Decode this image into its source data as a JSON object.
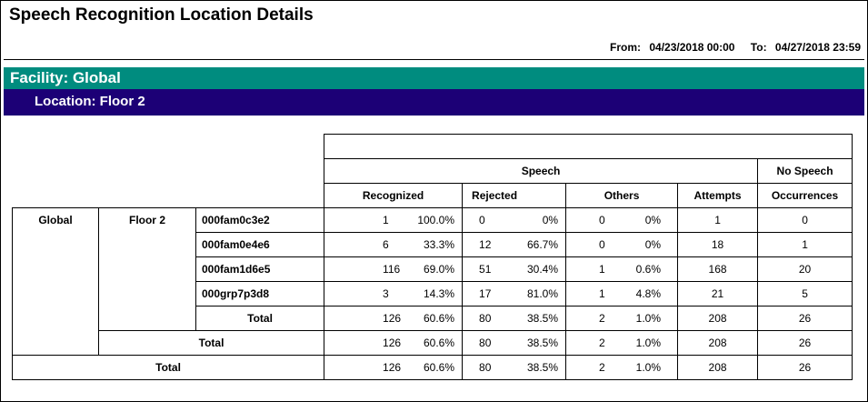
{
  "report": {
    "title": "Speech Recognition Location Details",
    "from_label": "From:",
    "from_value": "04/23/2018 00:00",
    "to_label": "To:",
    "to_value": "04/27/2018 23:59"
  },
  "facility": {
    "label": "Facility: Global"
  },
  "location": {
    "label": "Location: Floor 2"
  },
  "table": {
    "group_headers": {
      "speech": "Speech",
      "no_speech": "No Speech"
    },
    "columns": {
      "recognized": "Recognized",
      "rejected": "Rejected",
      "others": "Others",
      "attempts": "Attempts",
      "occurrences": "Occurrences"
    },
    "facility_name": "Global",
    "location_name": "Floor 2",
    "rows": [
      {
        "name": "000fam0c3e2",
        "rec": "1",
        "rec_pct": "100.0%",
        "rej": "0",
        "rej_pct": "0%",
        "oth": "0",
        "oth_pct": "0%",
        "att": "1",
        "occ": "0"
      },
      {
        "name": "000fam0e4e6",
        "rec": "6",
        "rec_pct": "33.3%",
        "rej": "12",
        "rej_pct": "66.7%",
        "oth": "0",
        "oth_pct": "0%",
        "att": "18",
        "occ": "1"
      },
      {
        "name": "000fam1d6e5",
        "rec": "116",
        "rec_pct": "69.0%",
        "rej": "51",
        "rej_pct": "30.4%",
        "oth": "1",
        "oth_pct": "0.6%",
        "att": "168",
        "occ": "20"
      },
      {
        "name": "000grp7p3d8",
        "rec": "3",
        "rec_pct": "14.3%",
        "rej": "17",
        "rej_pct": "81.0%",
        "oth": "1",
        "oth_pct": "4.8%",
        "att": "21",
        "occ": "5"
      }
    ],
    "totals": [
      {
        "label": "Total",
        "rec": "126",
        "rec_pct": "60.6%",
        "rej": "80",
        "rej_pct": "38.5%",
        "oth": "2",
        "oth_pct": "1.0%",
        "att": "208",
        "occ": "26"
      },
      {
        "label": "Total",
        "rec": "126",
        "rec_pct": "60.6%",
        "rej": "80",
        "rej_pct": "38.5%",
        "oth": "2",
        "oth_pct": "1.0%",
        "att": "208",
        "occ": "26"
      },
      {
        "label": "Total",
        "rec": "126",
        "rec_pct": "60.6%",
        "rej": "80",
        "rej_pct": "38.5%",
        "oth": "2",
        "oth_pct": "1.0%",
        "att": "208",
        "occ": "26"
      }
    ]
  }
}
